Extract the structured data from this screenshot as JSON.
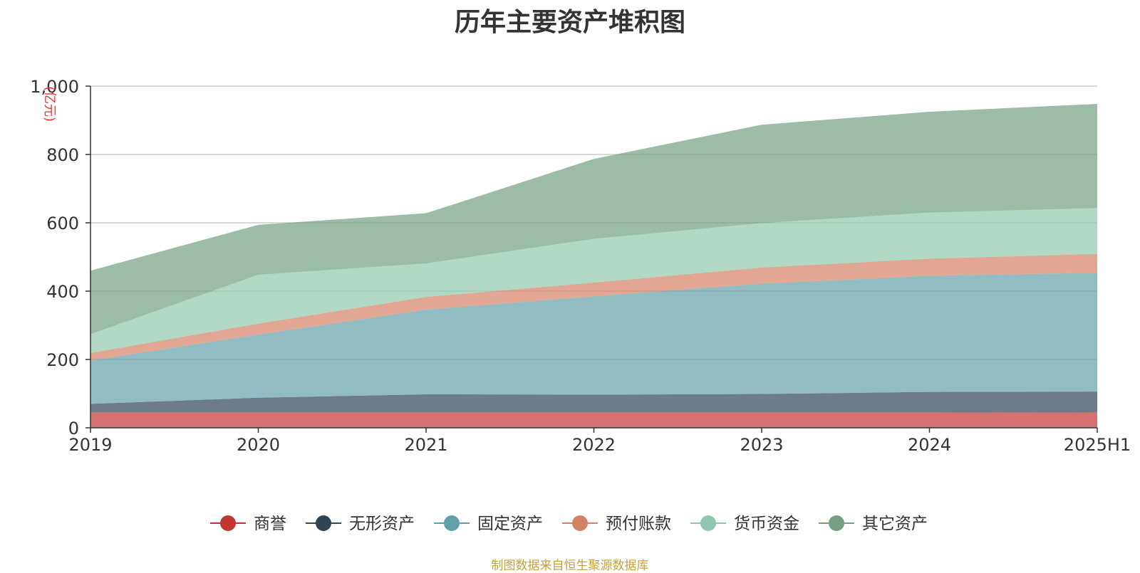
{
  "chart_data": {
    "type": "area",
    "stacked": true,
    "title": "历年主要资产堆积图",
    "ylabel": "(亿元)",
    "xlabel": "",
    "ylim": [
      0,
      1000
    ],
    "yticks": [
      0,
      200,
      400,
      600,
      800,
      1000
    ],
    "ytick_labels": [
      "0",
      "200",
      "400",
      "600",
      "800",
      "1,000"
    ],
    "categories": [
      "2019",
      "2020",
      "2021",
      "2022",
      "2023",
      "2024",
      "2025H1"
    ],
    "grid": true,
    "legend_position": "bottom",
    "series": [
      {
        "name": "商誉",
        "color": "#c23531",
        "values": [
          45,
          45,
          45,
          45,
          45,
          45,
          44
        ]
      },
      {
        "name": "无形资产",
        "color": "#2f4554",
        "values": [
          25,
          43,
          53,
          52,
          54,
          60,
          62
        ]
      },
      {
        "name": "固定资产",
        "color": "#61a0a8",
        "values": [
          127,
          185,
          248,
          288,
          323,
          340,
          348
        ]
      },
      {
        "name": "预付账款",
        "color": "#d48265",
        "values": [
          22,
          32,
          37,
          40,
          47,
          50,
          55
        ]
      },
      {
        "name": "货币资金",
        "color": "#91c7ae",
        "values": [
          55,
          143,
          98,
          128,
          130,
          135,
          134
        ]
      },
      {
        "name": "其它资产",
        "color": "#749f83",
        "values": [
          186,
          146,
          147,
          234,
          288,
          295,
          305
        ]
      }
    ]
  },
  "footer": {
    "source": "制图数据来自恒生聚源数据库"
  }
}
